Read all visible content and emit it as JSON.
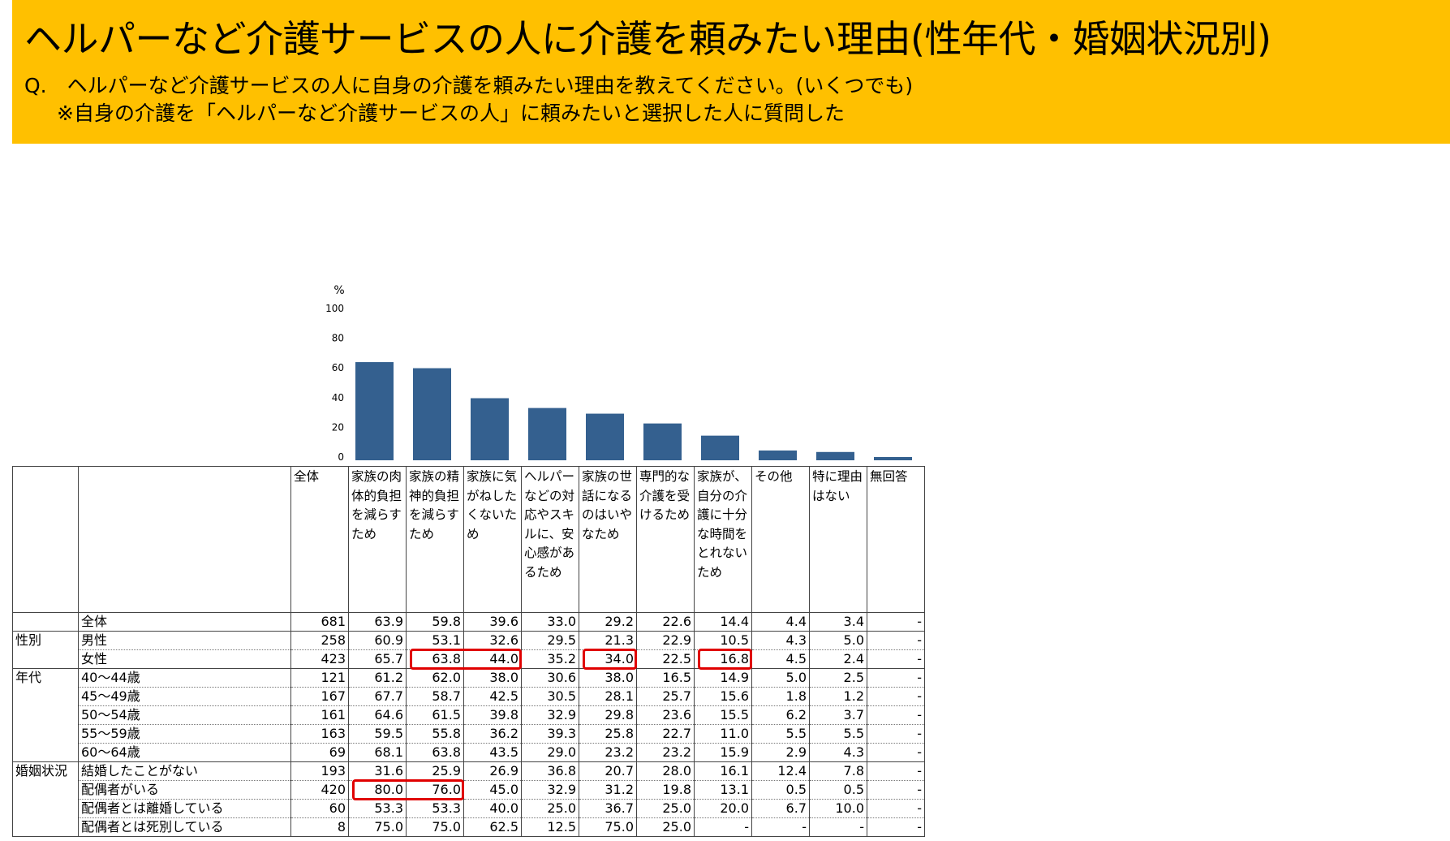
{
  "title": "ヘルパーなど介護サービスの人に介護を頼みたい理由(性年代・婚姻状況別)",
  "question": "Q.　ヘルパーなど介護サービスの人に自身の介護を頼みたい理由を教えてください。(いくつでも)",
  "note": "※自身の介護を「ヘルパーなど介護サービスの人」に頼みたいと選択した人に質問した",
  "chart_data": {
    "type": "bar",
    "unit_label": "%",
    "ylim": [
      0,
      100
    ],
    "yticks": [
      "0",
      "20",
      "40",
      "60",
      "80",
      "100"
    ],
    "bar_color": "#34608F",
    "categories": [
      "家族の肉体的負担を減らすため",
      "家族の精神的負担を減らすため",
      "家族に気がねしたくないため",
      "ヘルパーなどの対応やスキルに、安心感があるため",
      "家族の世話になるのはいやなため",
      "専門的な介護を受けるため",
      "家族が、自分の介護に十分な時間をとれないため",
      "その他",
      "特に理由はない",
      "無回答"
    ],
    "values": [
      63.9,
      59.8,
      39.6,
      33.0,
      29.2,
      22.6,
      14.4,
      4.4,
      3.4,
      0
    ]
  },
  "table": {
    "total_header": "全体",
    "rows": [
      {
        "group": "",
        "label": "全体",
        "n": "681",
        "values": [
          "63.9",
          "59.8",
          "39.6",
          "33.0",
          "29.2",
          "22.6",
          "14.4",
          "4.4",
          "3.4",
          "-"
        ]
      },
      {
        "group": "性別",
        "label": "男性",
        "n": "258",
        "values": [
          "60.9",
          "53.1",
          "32.6",
          "29.5",
          "21.3",
          "22.9",
          "10.5",
          "4.3",
          "5.0",
          "-"
        ]
      },
      {
        "group": "",
        "label": "女性",
        "n": "423",
        "values": [
          "65.7",
          "63.8",
          "44.0",
          "35.2",
          "34.0",
          "22.5",
          "16.8",
          "4.5",
          "2.4",
          "-"
        ]
      },
      {
        "group": "年代",
        "label": "40～44歳",
        "n": "121",
        "values": [
          "61.2",
          "62.0",
          "38.0",
          "30.6",
          "38.0",
          "16.5",
          "14.9",
          "5.0",
          "2.5",
          "-"
        ]
      },
      {
        "group": "",
        "label": "45～49歳",
        "n": "167",
        "values": [
          "67.7",
          "58.7",
          "42.5",
          "30.5",
          "28.1",
          "25.7",
          "15.6",
          "1.8",
          "1.2",
          "-"
        ]
      },
      {
        "group": "",
        "label": "50～54歳",
        "n": "161",
        "values": [
          "64.6",
          "61.5",
          "39.8",
          "32.9",
          "29.8",
          "23.6",
          "15.5",
          "6.2",
          "3.7",
          "-"
        ]
      },
      {
        "group": "",
        "label": "55～59歳",
        "n": "163",
        "values": [
          "59.5",
          "55.8",
          "36.2",
          "39.3",
          "25.8",
          "22.7",
          "11.0",
          "5.5",
          "5.5",
          "-"
        ]
      },
      {
        "group": "",
        "label": "60～64歳",
        "n": "69",
        "values": [
          "68.1",
          "63.8",
          "43.5",
          "29.0",
          "23.2",
          "23.2",
          "15.9",
          "2.9",
          "4.3",
          "-"
        ]
      },
      {
        "group": "婚姻状況",
        "label": "結婚したことがない",
        "n": "193",
        "values": [
          "31.6",
          "25.9",
          "26.9",
          "36.8",
          "20.7",
          "28.0",
          "16.1",
          "12.4",
          "7.8",
          "-"
        ]
      },
      {
        "group": "",
        "label": "配偶者がいる",
        "n": "420",
        "values": [
          "80.0",
          "76.0",
          "45.0",
          "32.9",
          "31.2",
          "19.8",
          "13.1",
          "0.5",
          "0.5",
          "-"
        ]
      },
      {
        "group": "",
        "label": "配偶者とは離婚している",
        "n": "60",
        "values": [
          "53.3",
          "53.3",
          "40.0",
          "25.0",
          "36.7",
          "25.0",
          "20.0",
          "6.7",
          "10.0",
          "-"
        ]
      },
      {
        "group": "",
        "label": "配偶者とは死別している",
        "n": "8",
        "values": [
          "75.0",
          "75.0",
          "62.5",
          "12.5",
          "75.0",
          "25.0",
          "-",
          "-",
          "-",
          "-"
        ]
      }
    ]
  }
}
